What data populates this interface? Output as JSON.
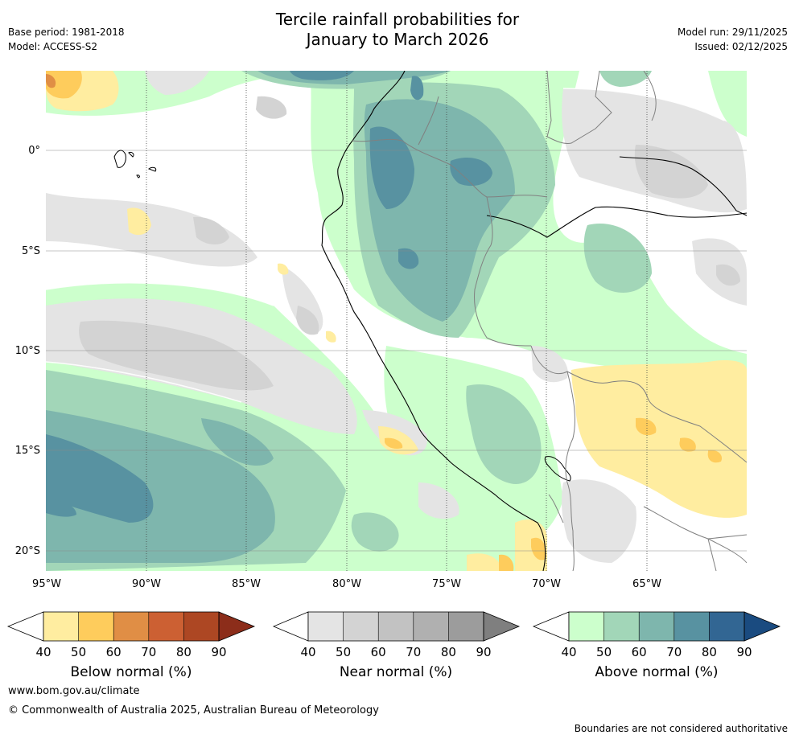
{
  "header": {
    "title_line1": "Tercile rainfall probabilities for",
    "title_line2": "January to March 2026",
    "base_period": "Base period: 1981-2018",
    "model": "Model: ACCESS-S2",
    "model_run": "Model run: 29/11/2025",
    "issued": "Issued: 02/12/2025"
  },
  "map": {
    "longitude_labels": [
      "95°W",
      "90°W",
      "85°W",
      "80°W",
      "75°W",
      "70°W",
      "65°W"
    ],
    "latitude_labels": [
      "0°",
      "5°S",
      "10°S",
      "15°S",
      "20°S"
    ],
    "extent": {
      "lon_min": -95,
      "lon_max": -60,
      "lat_min": -21,
      "lat_max": 4
    }
  },
  "legend": {
    "below": {
      "title": "Below normal (%)",
      "ticks": [
        "40",
        "50",
        "60",
        "70",
        "80",
        "90"
      ],
      "colors": [
        "#ffffff",
        "#ffeda0",
        "#fecc5c",
        "#e08e45",
        "#cc6033",
        "#ad4723",
        "#8c2d1a"
      ]
    },
    "near": {
      "title": "Near normal (%)",
      "ticks": [
        "40",
        "50",
        "60",
        "70",
        "80",
        "90"
      ],
      "colors": [
        "#ffffff",
        "#e4e4e4",
        "#d3d3d3",
        "#c2c2c2",
        "#b0b0b0",
        "#9c9c9c",
        "#7f7f7f"
      ]
    },
    "above": {
      "title": "Above normal (%)",
      "ticks": [
        "40",
        "50",
        "60",
        "70",
        "80",
        "90"
      ],
      "colors": [
        "#ffffff",
        "#ccffcc",
        "#a2d6b8",
        "#7eb6ad",
        "#5892a1",
        "#326693",
        "#1a4b80"
      ]
    }
  },
  "footer": {
    "website": "www.bom.gov.au/climate",
    "copyright": "© Commonwealth of Australia 2025, Australian Bureau of Meteorology",
    "disclaimer": "Boundaries are not considered authoritative"
  }
}
